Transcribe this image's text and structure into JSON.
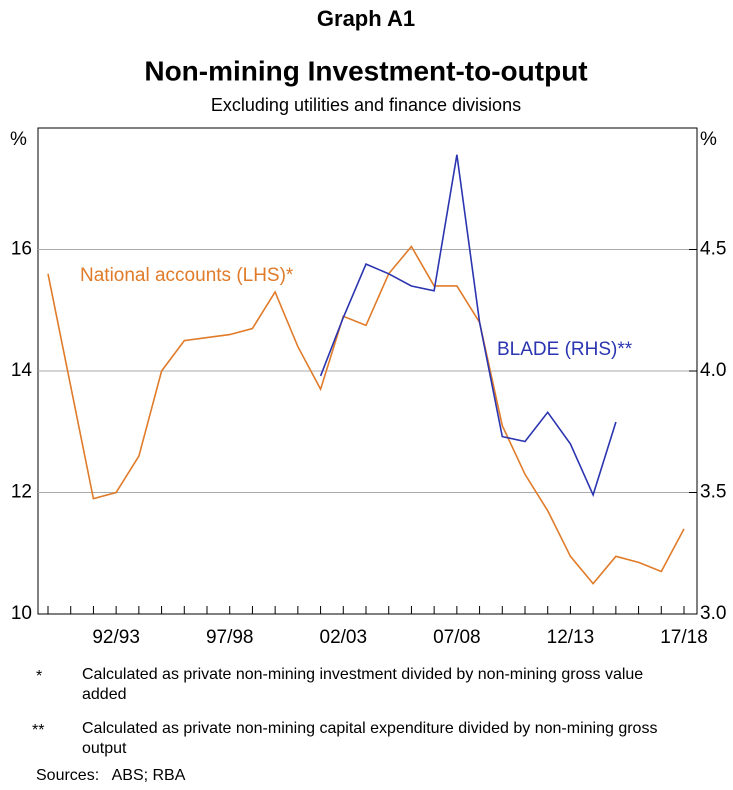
{
  "chart_data": {
    "type": "line",
    "supertitle": "Graph A1",
    "title": "Non-mining Investment-to-output",
    "subtitle": "Excluding utilities and finance divisions",
    "ylabel": "%",
    "y2label": "%",
    "categories": [
      null,
      null,
      null,
      "92/93",
      null,
      null,
      null,
      null,
      "97/98",
      null,
      null,
      null,
      null,
      "02/03",
      null,
      null,
      null,
      null,
      "07/08",
      null,
      null,
      null,
      null,
      "12/13",
      null,
      null,
      null,
      null,
      "17/18"
    ],
    "series": [
      {
        "name": "National accounts (LHS)*",
        "color": "#e07b2a",
        "axis": "y",
        "values": [
          15.6,
          13.75,
          11.9,
          12.0,
          12.6,
          14.0,
          14.5,
          14.55,
          14.6,
          14.7,
          15.3,
          14.4,
          13.7,
          14.9,
          14.75,
          15.6,
          16.05,
          15.4,
          15.4,
          14.8,
          13.1,
          12.3,
          11.7,
          10.95,
          10.5,
          10.95,
          10.85,
          10.7,
          11.4
        ]
      },
      {
        "name": "BLADE (RHS)**",
        "color": "#2b35b0",
        "axis": "y2",
        "values": [
          null,
          null,
          null,
          null,
          null,
          null,
          null,
          null,
          null,
          null,
          null,
          null,
          3.98,
          4.22,
          4.44,
          4.4,
          4.35,
          4.33,
          4.89,
          4.2,
          3.73,
          3.71,
          3.83,
          3.7,
          3.49,
          3.79,
          null,
          null,
          null
        ]
      }
    ],
    "ylim": [
      10,
      18
    ],
    "yticks": [
      10,
      12,
      14,
      16
    ],
    "y2lim": [
      3,
      5
    ],
    "y2ticks": [
      {
        "value": 3,
        "label": "3.0"
      },
      3.5,
      {
        "value": 4,
        "label": "4.0"
      },
      4.5
    ],
    "grid": true,
    "footnotes": [
      {
        "marker": "*",
        "text": "Calculated as private non-mining investment divided by non-mining gross value added"
      },
      {
        "marker": "**",
        "text": "Calculated as private non-mining capital expenditure divided by non-mining gross output"
      }
    ],
    "sources": "Sources:   ABS; RBA"
  }
}
